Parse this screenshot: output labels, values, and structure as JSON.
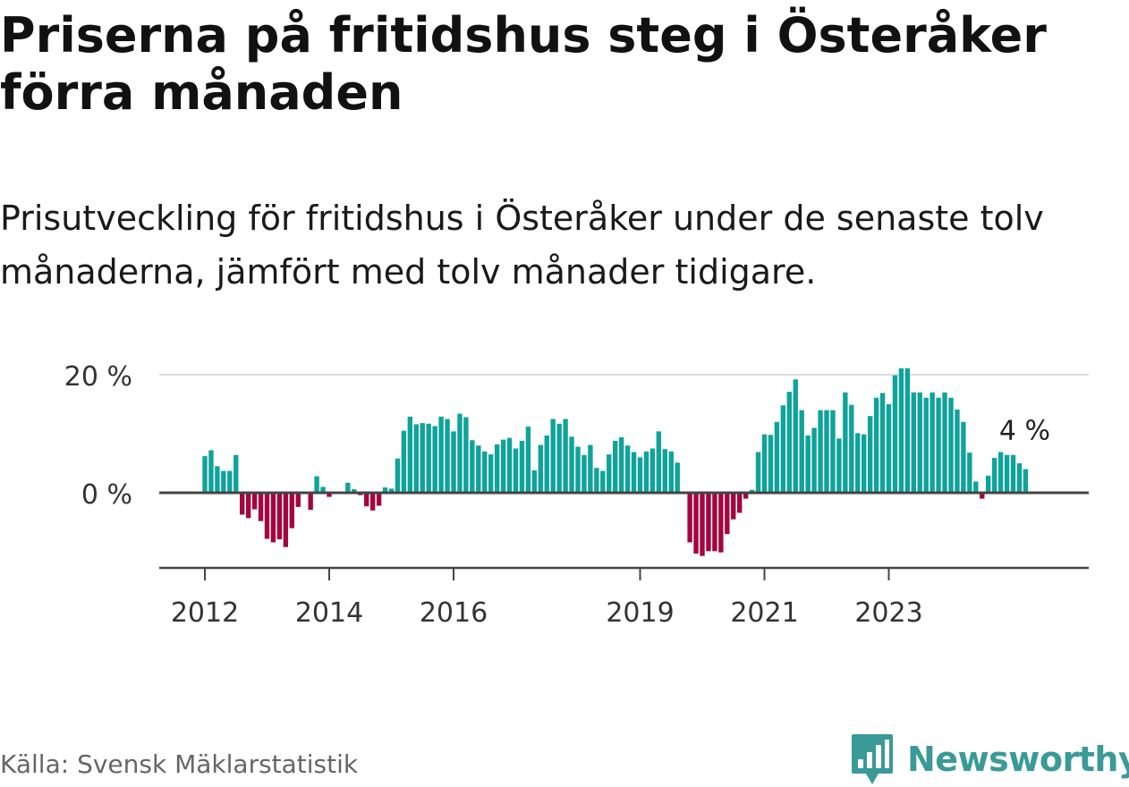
{
  "title": "Priserna på fritidshus steg i Österåker förra månaden",
  "subtitle": "Prisutveckling för fritidshus i Österåker under de senaste tolv månaderna, jämfört med tolv månader tidigare.",
  "source": "Källa: Svensk Mäklarstatistik",
  "brand": {
    "name": "Newsworthy",
    "logo_icon": "bar-chart-bubble-icon",
    "color": "#3a9a97"
  },
  "colors": {
    "positive": "#0fa39a",
    "negative": "#a3063f",
    "zero_line": "#444444",
    "grid": "#dddddd"
  },
  "chart_data": {
    "type": "bar",
    "title": "",
    "xlabel": "",
    "ylabel": "",
    "ylim": [
      -11,
      21
    ],
    "y_ticks": [
      0,
      20
    ],
    "y_tick_labels": [
      "0 %",
      "20 %"
    ],
    "x_tick_labels": [
      "2012",
      "2014",
      "2016",
      "2019",
      "2021",
      "2023"
    ],
    "x_tick_indices": [
      0,
      20,
      40,
      70,
      90,
      110
    ],
    "last_value_label": "4 %",
    "values_start": "2012-01",
    "values": [
      6.2,
      7.2,
      4.5,
      3.7,
      3.7,
      6.4,
      -3.7,
      -4.3,
      -2.8,
      -4.8,
      -7.8,
      -8.4,
      -7.9,
      -9.2,
      -6.0,
      -2.4,
      0,
      -2.9,
      2.8,
      1.0,
      -0.7,
      -0.2,
      0,
      1.7,
      0.6,
      -0.4,
      -2.3,
      -3.0,
      -2.2,
      0.9,
      0.7,
      5.8,
      10.5,
      12.9,
      11.6,
      11.8,
      11.7,
      11.3,
      12.9,
      12.5,
      10.4,
      13.4,
      12.8,
      8.9,
      8.0,
      7.0,
      6.5,
      8.2,
      9.0,
      9.3,
      7.5,
      8.8,
      11.2,
      3.8,
      8.1,
      9.7,
      12.5,
      11.7,
      12.5,
      9.5,
      7.8,
      6.4,
      8.1,
      4.2,
      3.7,
      6.5,
      8.8,
      9.4,
      8.0,
      6.9,
      6.0,
      7.0,
      7.5,
      10.4,
      7.4,
      7.0,
      5.1,
      0,
      -8.4,
      -10.3,
      -10.7,
      -9.9,
      -9.9,
      -10.1,
      -7.0,
      -4.5,
      -3.4,
      -1.0,
      0.5,
      6.9,
      9.9,
      9.8,
      12.0,
      14.8,
      17.1,
      19.2,
      14.0,
      9.7,
      11.0,
      14.0,
      14.0,
      14.0,
      9.2,
      17.0,
      14.9,
      10.1,
      9.9,
      13.0,
      16.1,
      16.9,
      15.0,
      19.9,
      21.1,
      21.1,
      17.0,
      17.0,
      16.1,
      17.0,
      16.1,
      17.0,
      16.1,
      14.1,
      12.0,
      6.8,
      1.9,
      -1.0,
      2.9,
      5.9,
      6.9,
      6.4,
      6.4,
      5.0,
      4.0
    ]
  }
}
